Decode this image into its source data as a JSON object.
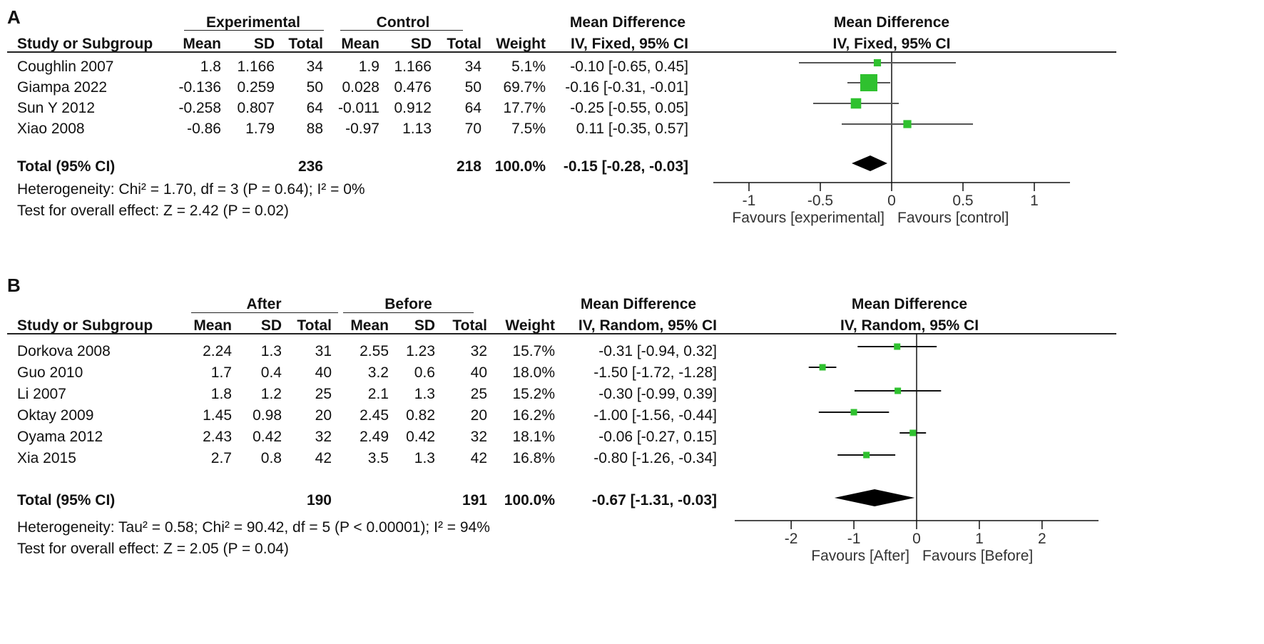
{
  "panels": [
    {
      "label": "A",
      "group_labels": [
        "Experimental",
        "Control"
      ],
      "header": {
        "study": "Study or Subgroup",
        "mean": "Mean",
        "sd": "SD",
        "total": "Total",
        "weight": "Weight",
        "effect_title": "Mean Difference",
        "effect_method": "IV, Fixed, 95% CI"
      },
      "rows": [
        {
          "study": "Coughlin 2007",
          "m1": "1.8",
          "sd1": "1.166",
          "n1": "34",
          "m2": "1.9",
          "sd2": "1.166",
          "n2": "34",
          "weight": "5.1%",
          "ci": "-0.10 [-0.65, 0.45]"
        },
        {
          "study": "Giampa 2022",
          "m1": "-0.136",
          "sd1": "0.259",
          "n1": "50",
          "m2": "0.028",
          "sd2": "0.476",
          "n2": "50",
          "weight": "69.7%",
          "ci": "-0.16 [-0.31, -0.01]"
        },
        {
          "study": "Sun Y 2012",
          "m1": "-0.258",
          "sd1": "0.807",
          "n1": "64",
          "m2": "-0.011",
          "sd2": "0.912",
          "n2": "64",
          "weight": "17.7%",
          "ci": "-0.25 [-0.55, 0.05]"
        },
        {
          "study": "Xiao 2008",
          "m1": "-0.86",
          "sd1": "1.79",
          "n1": "88",
          "m2": "-0.97",
          "sd2": "1.13",
          "n2": "70",
          "weight": "7.5%",
          "ci": "0.11 [-0.35, 0.57]"
        }
      ],
      "total": {
        "label": "Total (95% CI)",
        "n1": "236",
        "n2": "218",
        "weight": "100.0%",
        "ci": "-0.15 [-0.28, -0.03]"
      },
      "heterogeneity": "Heterogeneity: Chi² = 1.70, df = 3 (P = 0.64); I² = 0%",
      "overall_effect": "Test for overall effect: Z = 2.42 (P = 0.02)",
      "favours_left": "Favours [experimental]",
      "favours_right": "Favours [control]"
    },
    {
      "label": "B",
      "group_labels": [
        "After",
        "Before"
      ],
      "header": {
        "study": "Study or Subgroup",
        "mean": "Mean",
        "sd": "SD",
        "total": "Total",
        "weight": "Weight",
        "effect_title": "Mean Difference",
        "effect_method": "IV, Random, 95% CI"
      },
      "rows": [
        {
          "study": "Dorkova 2008",
          "m1": "2.24",
          "sd1": "1.3",
          "n1": "31",
          "m2": "2.55",
          "sd2": "1.23",
          "n2": "32",
          "weight": "15.7%",
          "ci": "-0.31 [-0.94, 0.32]"
        },
        {
          "study": "Guo 2010",
          "m1": "1.7",
          "sd1": "0.4",
          "n1": "40",
          "m2": "3.2",
          "sd2": "0.6",
          "n2": "40",
          "weight": "18.0%",
          "ci": "-1.50 [-1.72, -1.28]"
        },
        {
          "study": "Li 2007",
          "m1": "1.8",
          "sd1": "1.2",
          "n1": "25",
          "m2": "2.1",
          "sd2": "1.3",
          "n2": "25",
          "weight": "15.2%",
          "ci": "-0.30 [-0.99, 0.39]"
        },
        {
          "study": "Oktay 2009",
          "m1": "1.45",
          "sd1": "0.98",
          "n1": "20",
          "m2": "2.45",
          "sd2": "0.82",
          "n2": "20",
          "weight": "16.2%",
          "ci": "-1.00 [-1.56, -0.44]"
        },
        {
          "study": "Oyama 2012",
          "m1": "2.43",
          "sd1": "0.42",
          "n1": "32",
          "m2": "2.49",
          "sd2": "0.42",
          "n2": "32",
          "weight": "18.1%",
          "ci": "-0.06 [-0.27, 0.15]"
        },
        {
          "study": "Xia 2015",
          "m1": "2.7",
          "sd1": "0.8",
          "n1": "42",
          "m2": "3.5",
          "sd2": "1.3",
          "n2": "42",
          "weight": "16.8%",
          "ci": "-0.80 [-1.26, -0.34]"
        }
      ],
      "total": {
        "label": "Total (95% CI)",
        "n1": "190",
        "n2": "191",
        "weight": "100.0%",
        "ci": "-0.67 [-1.31, -0.03]"
      },
      "heterogeneity": "Heterogeneity: Tau² = 0.58; Chi² = 90.42, df = 5 (P < 0.00001); I² = 94%",
      "overall_effect": "Test for overall effect: Z = 2.05 (P = 0.04)",
      "favours_left": "Favours [After]",
      "favours_right": "Favours [Before]"
    }
  ],
  "chart_data": [
    {
      "type": "forest",
      "title": "Mean Difference IV, Fixed, 95% CI",
      "x_ticks": [
        -1,
        -0.5,
        0,
        0.5,
        1
      ],
      "x_tick_labels": [
        "-1",
        "-0.5",
        "0",
        "0.5",
        "1"
      ],
      "xlim": [
        -1.25,
        1.25
      ],
      "marker_color": "#2fc12f",
      "studies": [
        {
          "study": "Coughlin 2007",
          "estimate": -0.1,
          "lower": -0.65,
          "upper": 0.45,
          "weight": 5.1
        },
        {
          "study": "Giampa 2022",
          "estimate": -0.16,
          "lower": -0.31,
          "upper": -0.01,
          "weight": 69.7
        },
        {
          "study": "Sun Y 2012",
          "estimate": -0.25,
          "lower": -0.55,
          "upper": 0.05,
          "weight": 17.7
        },
        {
          "study": "Xiao 2008",
          "estimate": 0.11,
          "lower": -0.35,
          "upper": 0.57,
          "weight": 7.5
        }
      ],
      "pooled": {
        "estimate": -0.15,
        "lower": -0.28,
        "upper": -0.03
      }
    },
    {
      "type": "forest",
      "title": "Mean Difference IV, Random, 95% CI",
      "x_ticks": [
        -2,
        -1,
        0,
        1,
        2
      ],
      "x_tick_labels": [
        "-2",
        "-1",
        "0",
        "1",
        "2"
      ],
      "xlim": [
        -2.9,
        2.9
      ],
      "marker_color": "#2fc12f",
      "studies": [
        {
          "study": "Dorkova 2008",
          "estimate": -0.31,
          "lower": -0.94,
          "upper": 0.32,
          "weight": 15.7
        },
        {
          "study": "Guo 2010",
          "estimate": -1.5,
          "lower": -1.72,
          "upper": -1.28,
          "weight": 18.0
        },
        {
          "study": "Li 2007",
          "estimate": -0.3,
          "lower": -0.99,
          "upper": 0.39,
          "weight": 15.2
        },
        {
          "study": "Oktay 2009",
          "estimate": -1.0,
          "lower": -1.56,
          "upper": -0.44,
          "weight": 16.2
        },
        {
          "study": "Oyama 2012",
          "estimate": -0.06,
          "lower": -0.27,
          "upper": 0.15,
          "weight": 18.1
        },
        {
          "study": "Xia 2015",
          "estimate": -0.8,
          "lower": -1.26,
          "upper": -0.34,
          "weight": 16.8
        }
      ],
      "pooled": {
        "estimate": -0.67,
        "lower": -1.31,
        "upper": -0.03
      }
    }
  ]
}
